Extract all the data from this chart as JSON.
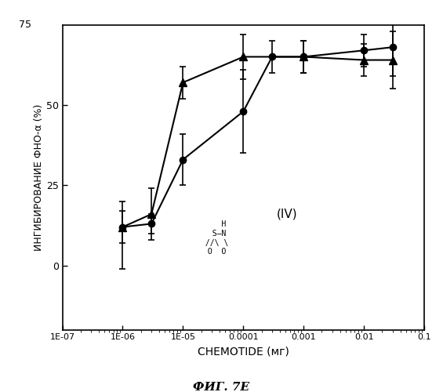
{
  "xlabel": "CHEMOTIDE (мг)",
  "ylabel": "ИНГИБИРОВАНИЕ ФНО-α (%)",
  "caption": "ФИГ. 7E",
  "series_circle": {
    "x": [
      1e-06,
      3e-06,
      1e-05,
      0.0001,
      0.0003,
      0.001,
      0.01,
      0.03
    ],
    "y": [
      12,
      13,
      33,
      48,
      65,
      65,
      67,
      68
    ],
    "yerr_lo": [
      13,
      3,
      8,
      13,
      5,
      5,
      5,
      9
    ],
    "yerr_hi": [
      8,
      3,
      8,
      13,
      5,
      5,
      5,
      9
    ]
  },
  "series_triangle": {
    "x": [
      1e-06,
      3e-06,
      1e-05,
      0.0001,
      0.001,
      0.01,
      0.03
    ],
    "y": [
      12,
      16,
      57,
      65,
      65,
      64,
      64
    ],
    "yerr_lo": [
      5,
      8,
      5,
      7,
      5,
      5,
      9
    ],
    "yerr_hi": [
      5,
      8,
      5,
      7,
      5,
      5,
      9
    ]
  },
  "bg_color": "#ffffff",
  "line_color": "#000000",
  "xlim": [
    1e-07,
    0.1
  ],
  "ylim": [
    -20,
    75
  ],
  "yticks": [
    0,
    25,
    50
  ],
  "ytick_labels": [
    "0",
    "25",
    "50"
  ],
  "xticks": [
    1e-07,
    1e-06,
    1e-05,
    0.0001,
    0.001,
    0.01,
    0.1
  ],
  "xtick_labels": [
    "1E-07",
    "1E-06",
    "1E-05",
    "0.0001",
    "0.001",
    "0.01",
    "0.1"
  ]
}
